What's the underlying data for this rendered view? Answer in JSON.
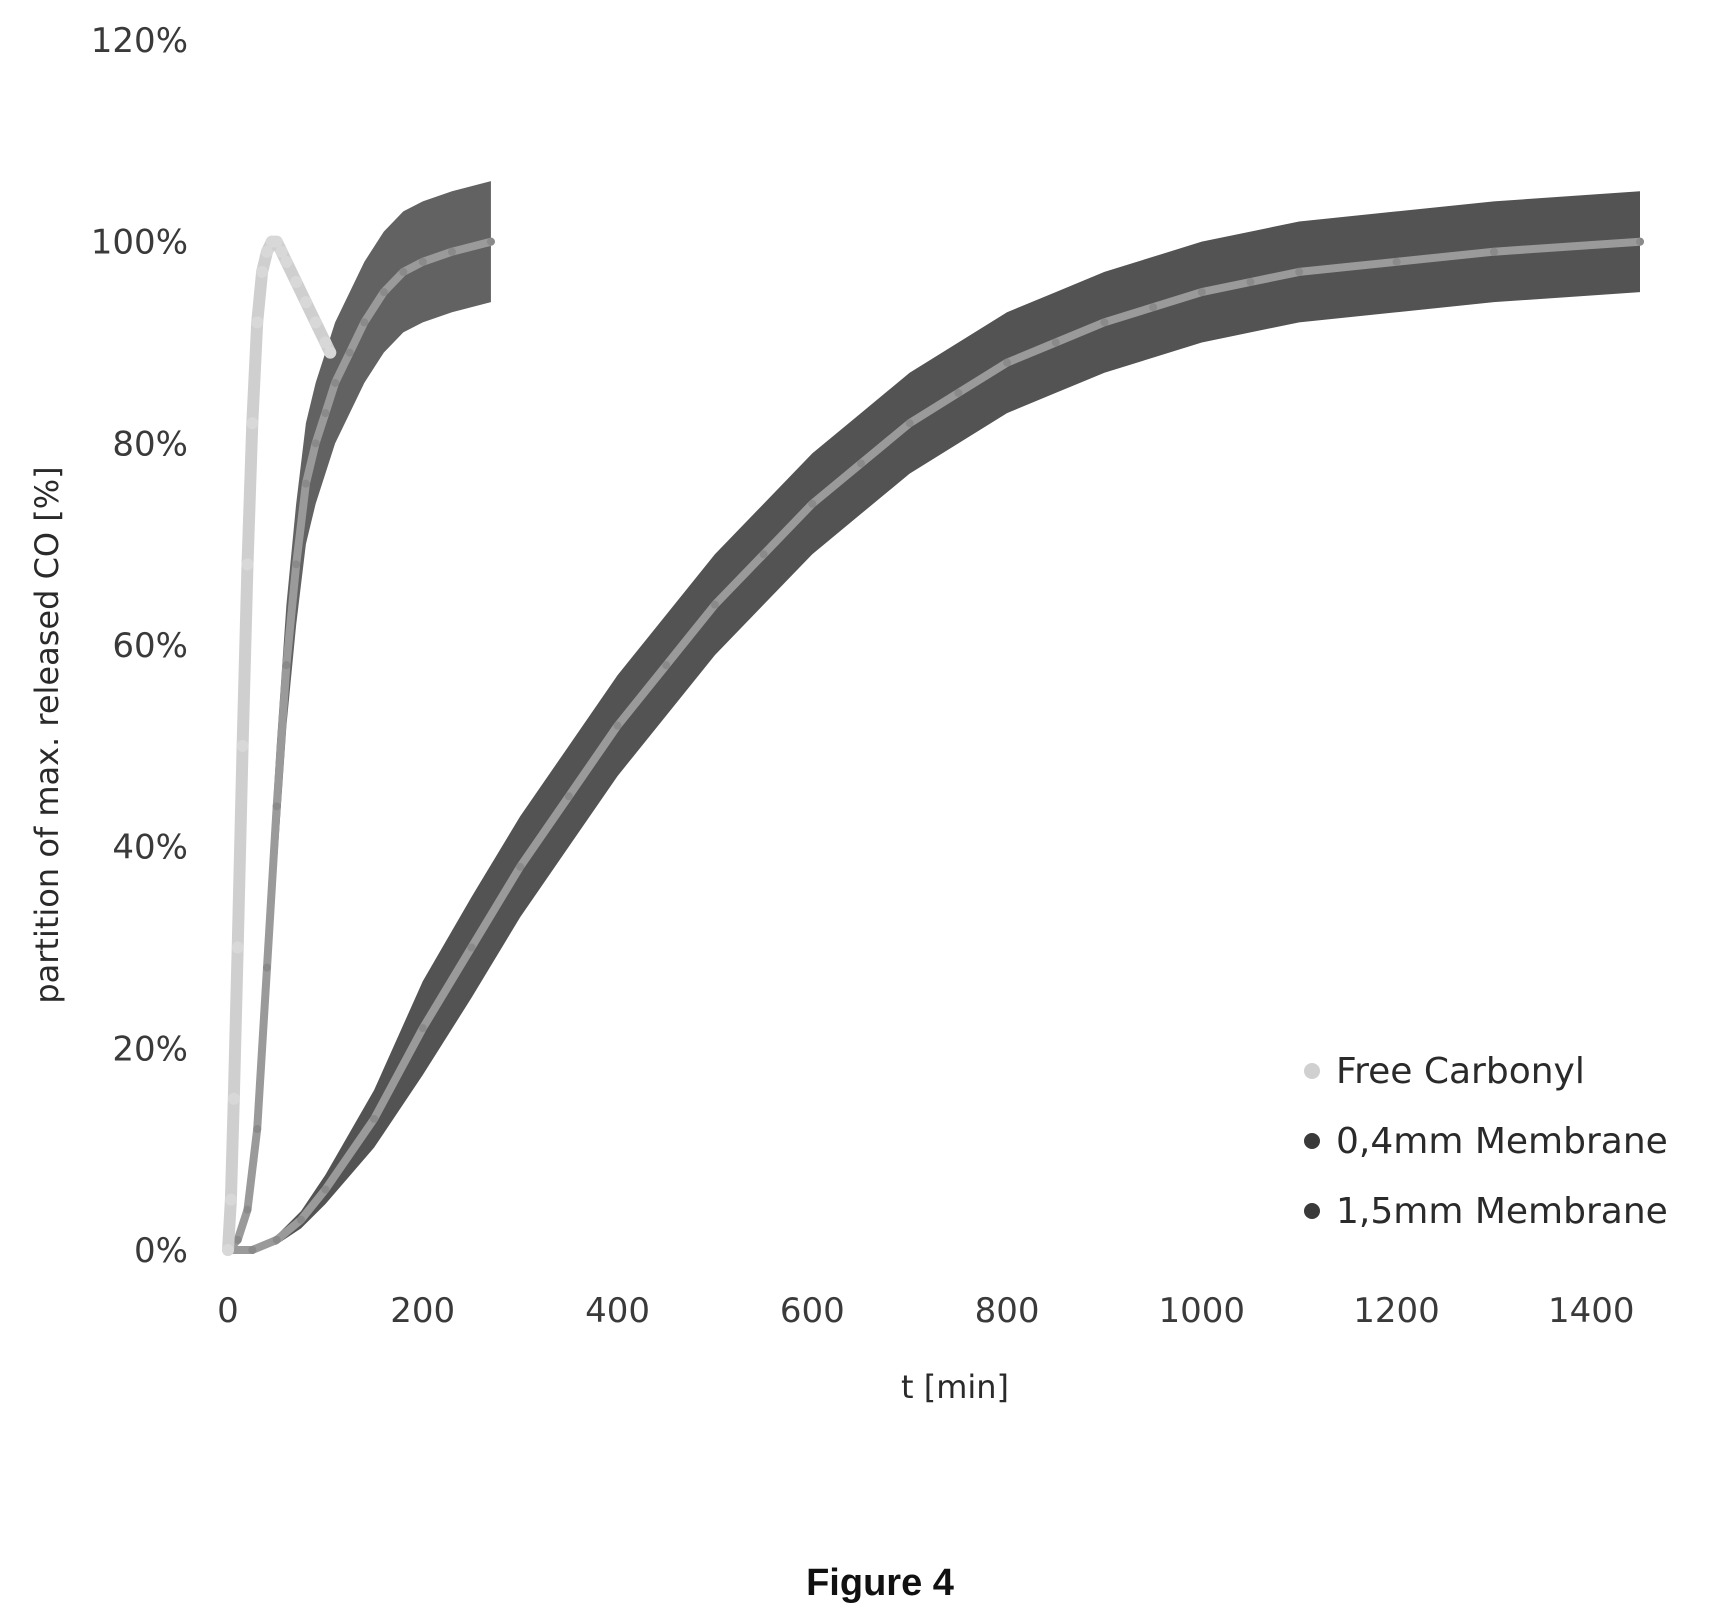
{
  "chart_data": {
    "type": "line",
    "xlabel": "t [min]",
    "ylabel": "partition of max. released CO [%]",
    "xlim": [
      0,
      1450
    ],
    "ylim": [
      0,
      1.2
    ],
    "x_ticks": [
      "0",
      "200",
      "400",
      "600",
      "800",
      "1000",
      "1200",
      "1400"
    ],
    "y_ticks": [
      "0%",
      "20%",
      "40%",
      "60%",
      "80%",
      "100%",
      "120%"
    ],
    "grid": false,
    "legend_position": "bottom-right",
    "series": [
      {
        "name": "Free Carbonyl",
        "color": "#c8c8c8",
        "points": [
          [
            0,
            0
          ],
          [
            3,
            0.05
          ],
          [
            6,
            0.15
          ],
          [
            10,
            0.3
          ],
          [
            15,
            0.5
          ],
          [
            20,
            0.68
          ],
          [
            25,
            0.82
          ],
          [
            30,
            0.92
          ],
          [
            35,
            0.97
          ],
          [
            40,
            0.99
          ],
          [
            45,
            1.0
          ],
          [
            50,
            1.0
          ],
          [
            55,
            0.99
          ],
          [
            60,
            0.98
          ],
          [
            70,
            0.96
          ],
          [
            80,
            0.94
          ],
          [
            90,
            0.92
          ],
          [
            100,
            0.9
          ],
          [
            105,
            0.89
          ]
        ]
      },
      {
        "name": "0,4mm Membrane",
        "color": "#5a5a5a",
        "error": 0.06,
        "points": [
          [
            0,
            0
          ],
          [
            10,
            0.01
          ],
          [
            20,
            0.04
          ],
          [
            30,
            0.12
          ],
          [
            40,
            0.28
          ],
          [
            50,
            0.44
          ],
          [
            60,
            0.58
          ],
          [
            70,
            0.68
          ],
          [
            80,
            0.76
          ],
          [
            90,
            0.8
          ],
          [
            100,
            0.83
          ],
          [
            110,
            0.86
          ],
          [
            125,
            0.89
          ],
          [
            140,
            0.92
          ],
          [
            160,
            0.95
          ],
          [
            180,
            0.97
          ],
          [
            200,
            0.98
          ],
          [
            230,
            0.99
          ],
          [
            270,
            1.0
          ]
        ]
      },
      {
        "name": "1,5mm Membrane",
        "color": "#4a4a4a",
        "error": 0.05,
        "points": [
          [
            0,
            0
          ],
          [
            25,
            0
          ],
          [
            50,
            0.01
          ],
          [
            75,
            0.03
          ],
          [
            100,
            0.06
          ],
          [
            150,
            0.13
          ],
          [
            200,
            0.22
          ],
          [
            250,
            0.3
          ],
          [
            300,
            0.38
          ],
          [
            350,
            0.45
          ],
          [
            400,
            0.52
          ],
          [
            450,
            0.58
          ],
          [
            500,
            0.64
          ],
          [
            550,
            0.69
          ],
          [
            600,
            0.74
          ],
          [
            650,
            0.78
          ],
          [
            700,
            0.82
          ],
          [
            750,
            0.85
          ],
          [
            800,
            0.88
          ],
          [
            850,
            0.9
          ],
          [
            900,
            0.92
          ],
          [
            950,
            0.935
          ],
          [
            1000,
            0.95
          ],
          [
            1050,
            0.96
          ],
          [
            1100,
            0.97
          ],
          [
            1200,
            0.98
          ],
          [
            1300,
            0.99
          ],
          [
            1450,
            1.0
          ]
        ]
      }
    ]
  },
  "figure": {
    "caption": "Figure 4"
  }
}
